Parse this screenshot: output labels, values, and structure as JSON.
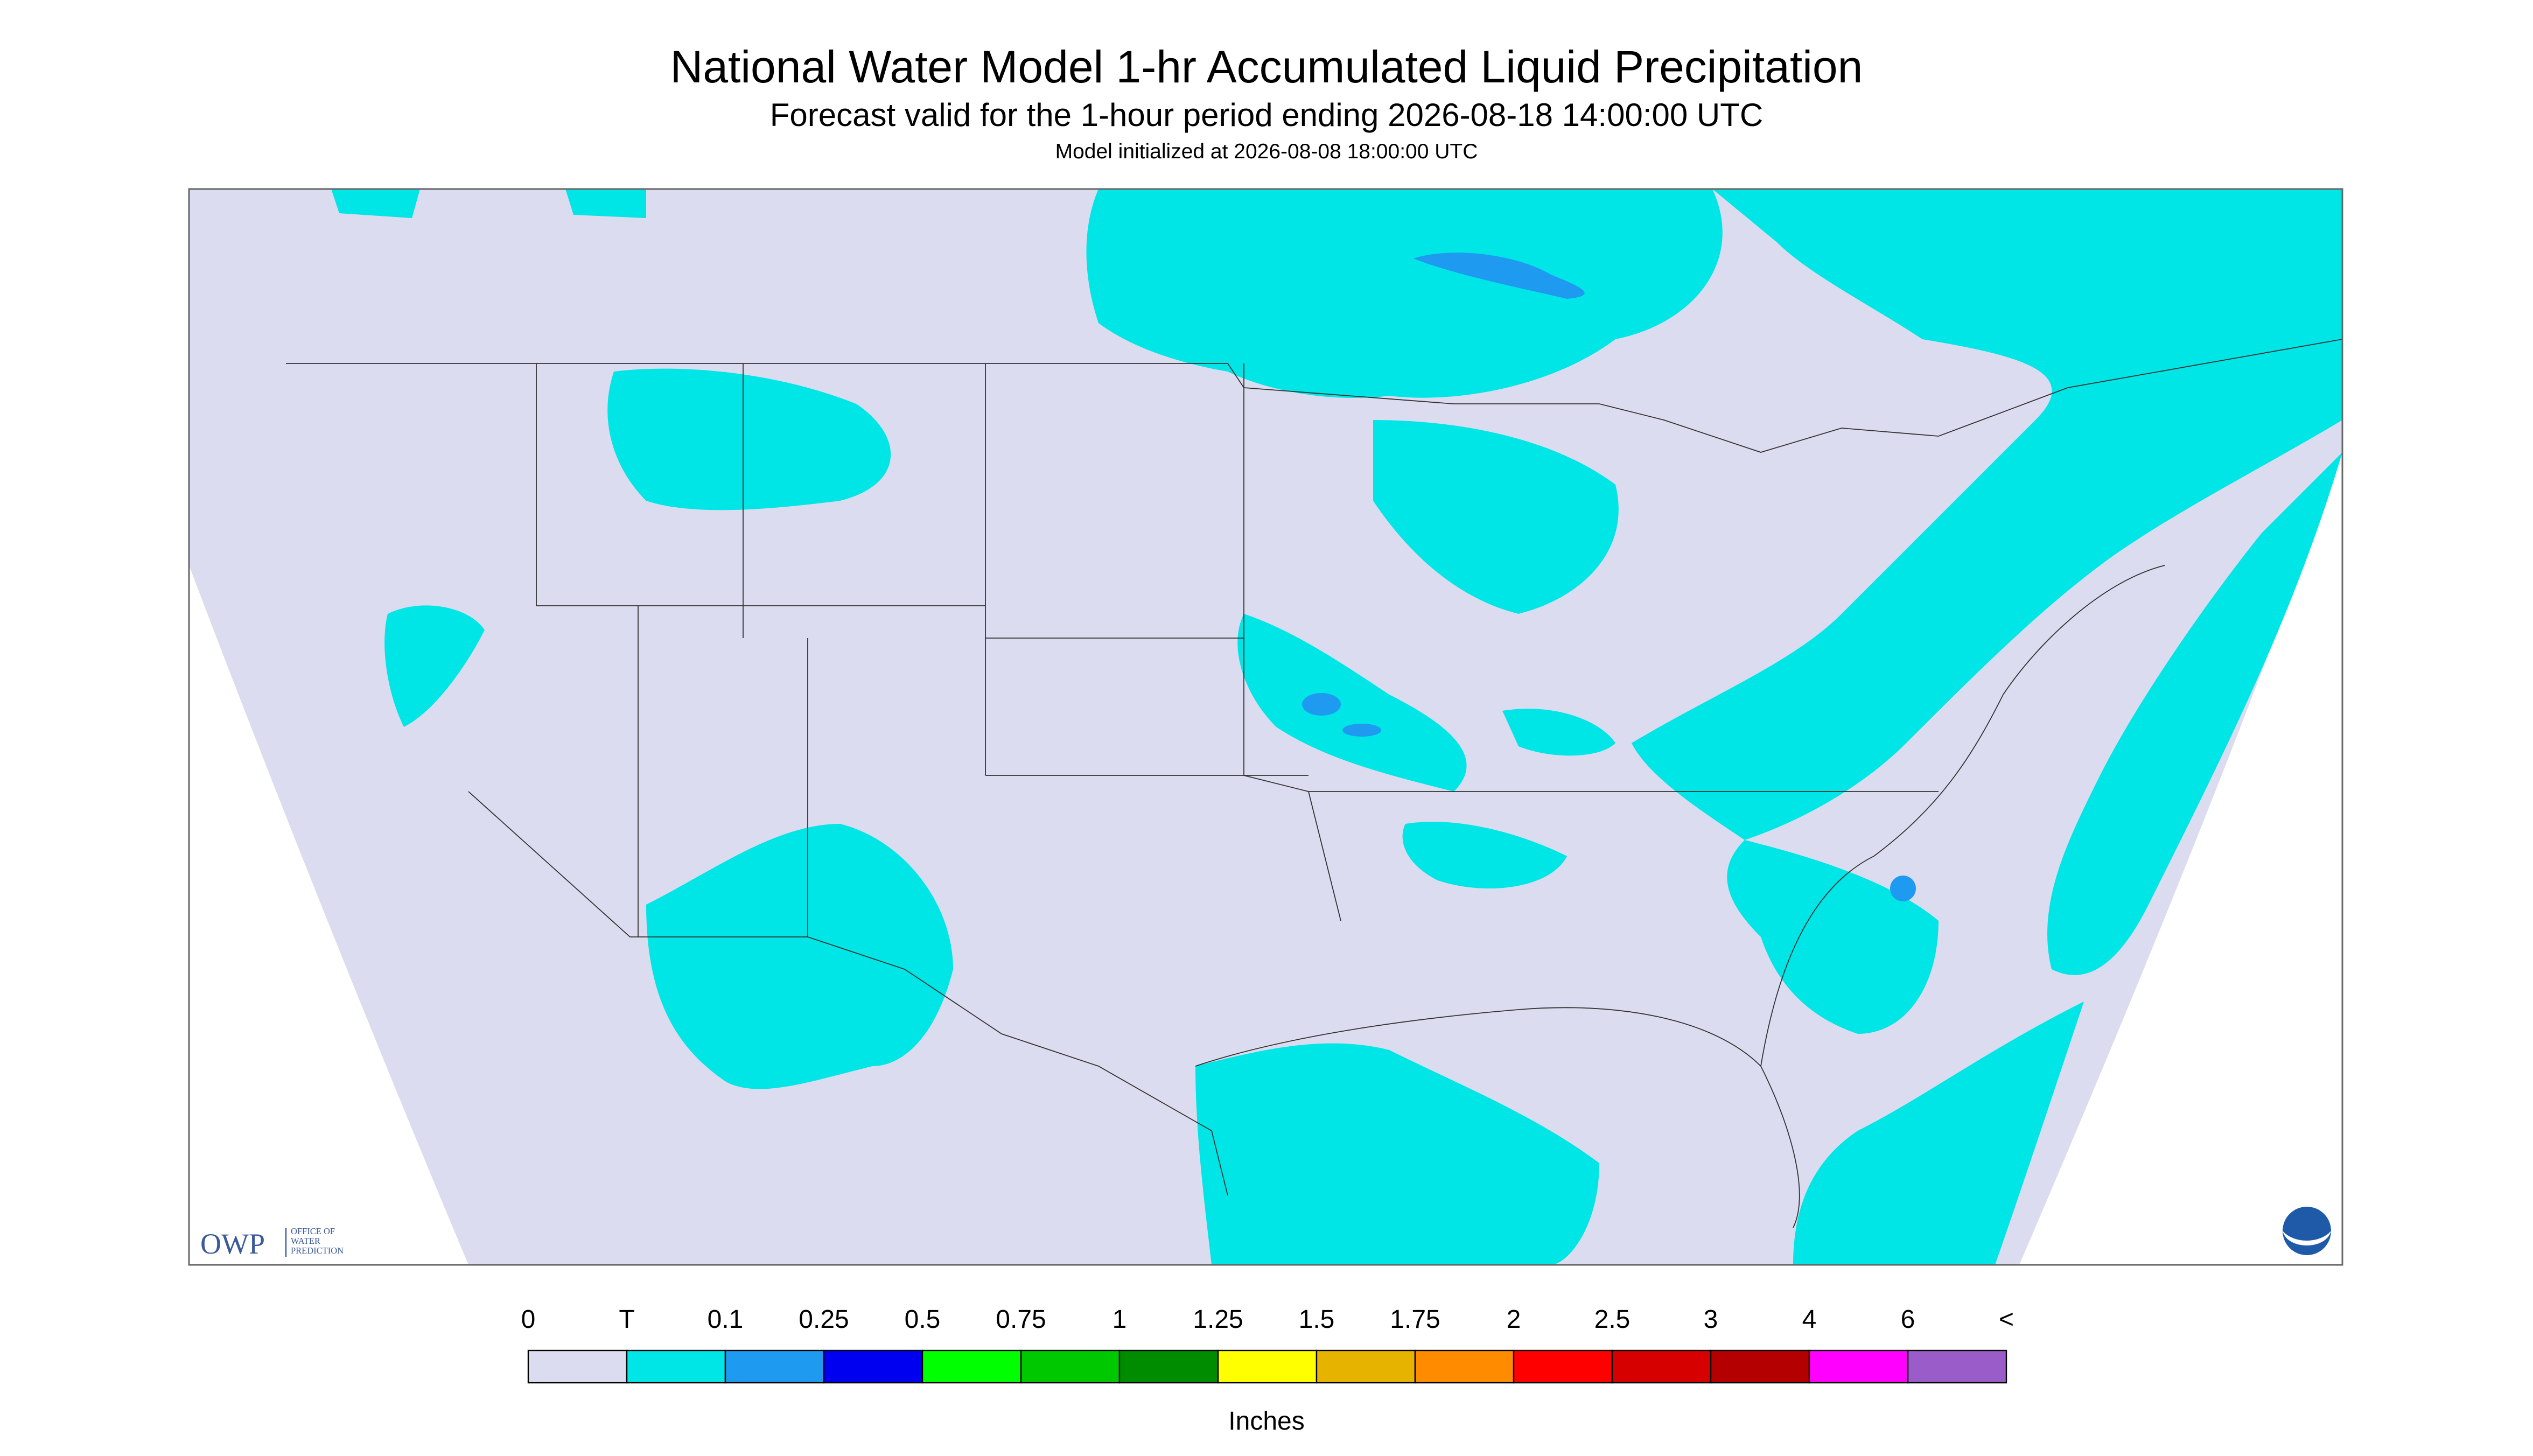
{
  "header": {
    "title": "National Water Model 1-hr Accumulated Liquid Precipitation",
    "subtitle": "Forecast valid for the 1-hour period ending 2026-08-18 14:00:00 UTC",
    "init": "Model initialized at 2026-08-08 18:00:00 UTC"
  },
  "legend": {
    "labels": [
      "0",
      "T",
      "0.1",
      "0.25",
      "0.5",
      "0.75",
      "1",
      "1.25",
      "1.5",
      "1.75",
      "2",
      "2.5",
      "3",
      "4",
      "6",
      "<"
    ],
    "colors": [
      "#dcdcf0",
      "#00e5e5",
      "#1e9bf0",
      "#0000f0",
      "#00ff00",
      "#00c800",
      "#008c00",
      "#ffff00",
      "#e6b400",
      "#ff8c00",
      "#ff0000",
      "#d70000",
      "#b40000",
      "#ff00ff",
      "#9a5cc8"
    ],
    "unit": "Inches"
  },
  "logo": {
    "name": "OWP",
    "line1": "OFFICE OF",
    "line2": "WATER",
    "line3": "PREDICTION"
  }
}
